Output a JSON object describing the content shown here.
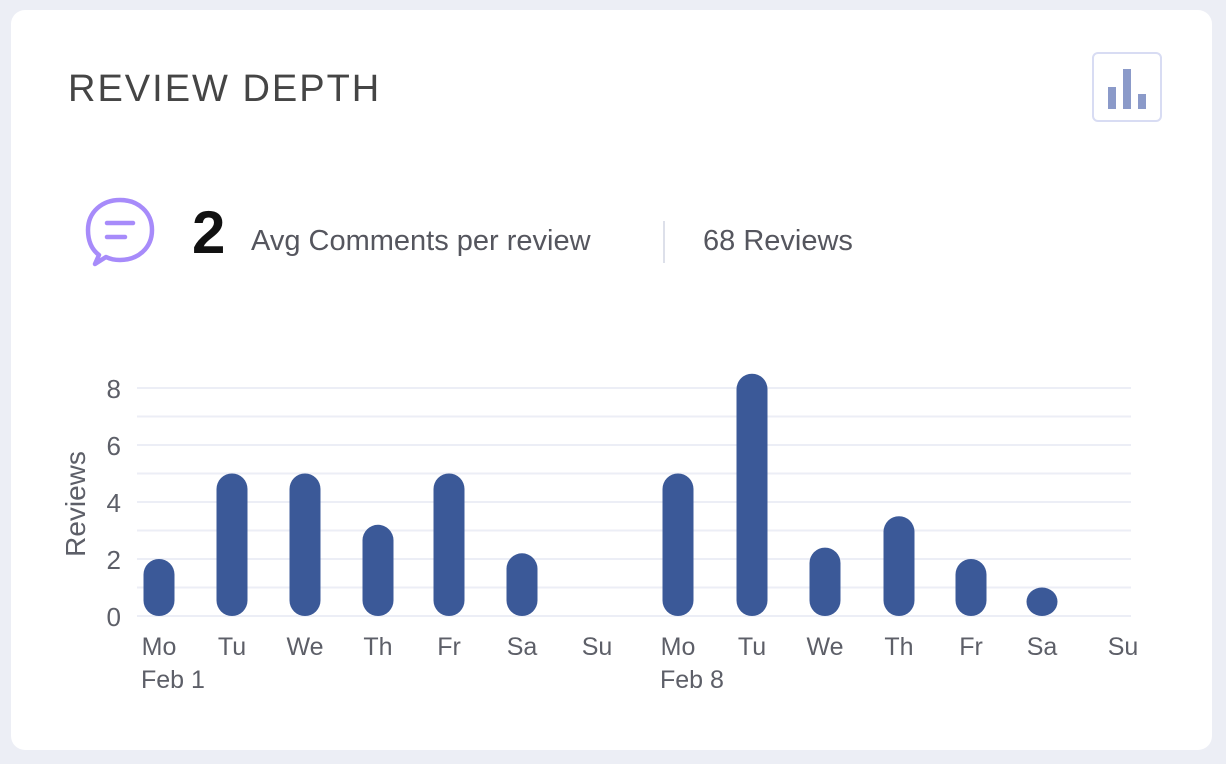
{
  "header": {
    "title": "REVIEW DEPTH",
    "chart_toggle_icon": "bar-chart-icon"
  },
  "summary": {
    "icon": "comment-icon",
    "value": "2",
    "label": "Avg Comments per review",
    "reviews": "68 Reviews"
  },
  "colors": {
    "bar": "#3b5998",
    "icon_purple": "#a78bfa",
    "toggle_icon": "#8b9ac9",
    "grid": "#eceef6"
  },
  "chart_data": {
    "type": "bar",
    "title": "",
    "xlabel": "",
    "ylabel": "Reviews",
    "ylim": [
      0,
      8
    ],
    "yticks": [
      0,
      2,
      4,
      6,
      8
    ],
    "grid": true,
    "categories": [
      "Mo",
      "Tu",
      "We",
      "Th",
      "Fr",
      "Sa",
      "Su",
      "Mo",
      "Tu",
      "We",
      "Th",
      "Fr",
      "Sa",
      "Su"
    ],
    "week_labels": [
      {
        "index": 0,
        "label": "Feb 1"
      },
      {
        "index": 7,
        "label": "Feb 8"
      }
    ],
    "values": [
      2,
      5,
      5,
      3.2,
      5,
      2.2,
      0,
      5,
      8.5,
      2.4,
      3.5,
      2,
      1,
      0
    ]
  }
}
